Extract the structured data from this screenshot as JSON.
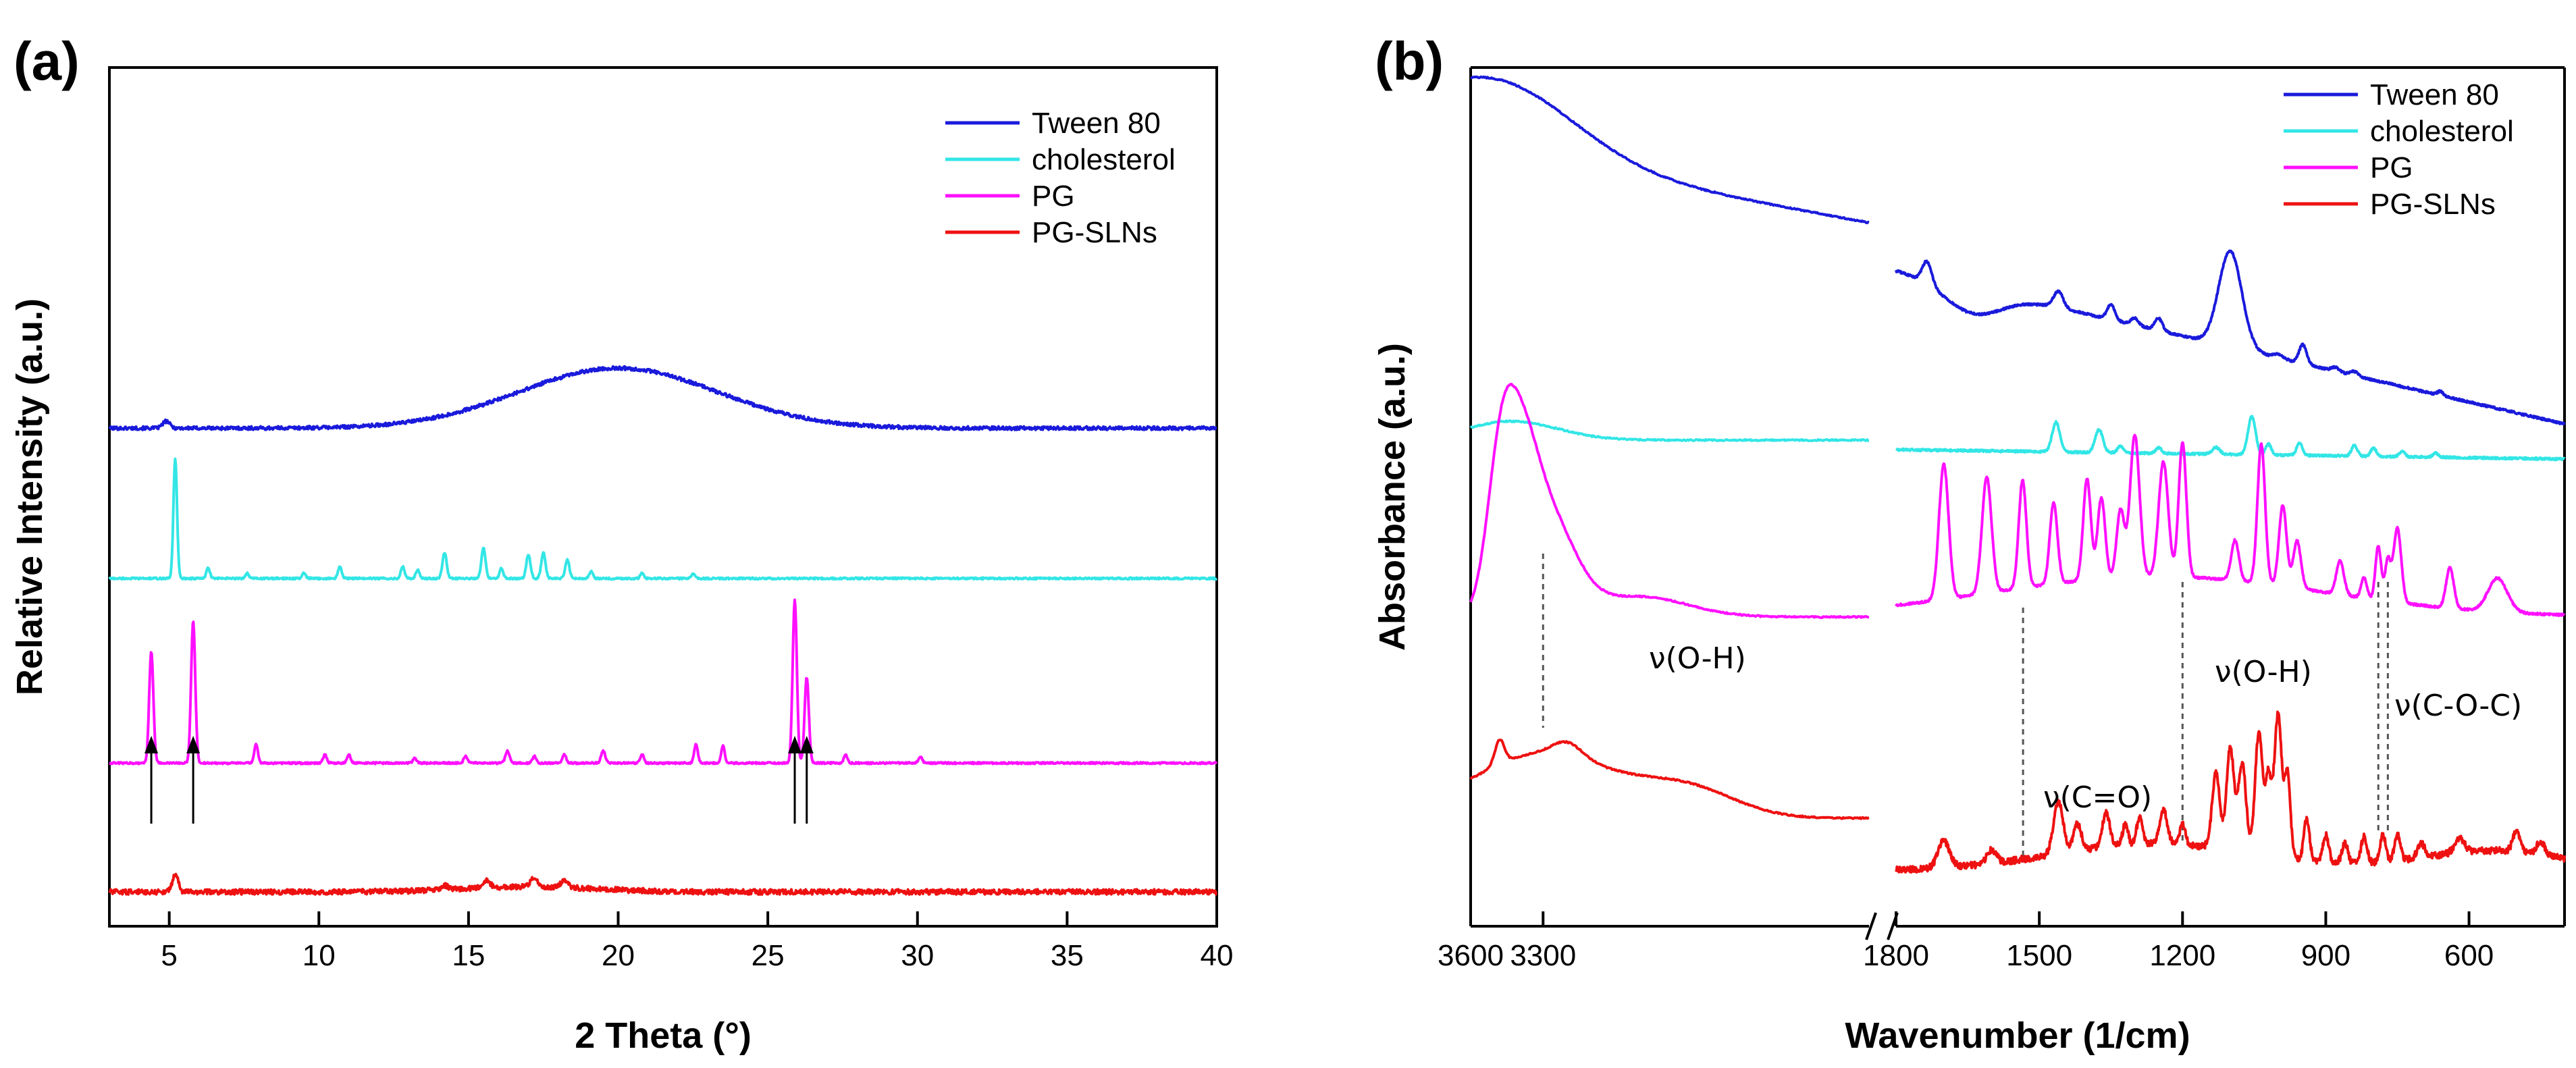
{
  "chart_data": [
    {
      "panel": "(a)",
      "type": "line",
      "xlabel": "2 Theta (°)",
      "ylabel": "Relative Intensity (a.u.)",
      "xlim": [
        3,
        40
      ],
      "xticks": [
        5,
        10,
        15,
        20,
        25,
        30,
        35,
        40
      ],
      "legend": "top-right",
      "series": [
        {
          "name": "Tween 80",
          "color": "#1a1adc",
          "offset": 0.58,
          "noise": 0.002,
          "broad": [
            [
              20.0,
              0.07,
              3.3
            ]
          ],
          "peaks": [
            [
              4.9,
              0.008,
              0.12
            ]
          ]
        },
        {
          "name": "cholesterol",
          "color": "#33e6e6",
          "offset": 0.405,
          "noise": 0.001,
          "broad": [],
          "peaks": [
            [
              5.2,
              0.14,
              0.06
            ],
            [
              6.3,
              0.012,
              0.06
            ],
            [
              7.6,
              0.006,
              0.06
            ],
            [
              9.5,
              0.006,
              0.06
            ],
            [
              10.7,
              0.014,
              0.06
            ],
            [
              12.8,
              0.014,
              0.06
            ],
            [
              13.3,
              0.01,
              0.06
            ],
            [
              14.2,
              0.03,
              0.07
            ],
            [
              15.5,
              0.035,
              0.07
            ],
            [
              16.1,
              0.012,
              0.06
            ],
            [
              17.0,
              0.028,
              0.07
            ],
            [
              17.5,
              0.03,
              0.07
            ],
            [
              18.3,
              0.022,
              0.07
            ],
            [
              19.1,
              0.008,
              0.06
            ],
            [
              20.8,
              0.006,
              0.06
            ],
            [
              22.5,
              0.005,
              0.06
            ]
          ]
        },
        {
          "name": "PG",
          "color": "#ff10ff",
          "offset": 0.19,
          "noise": 0.001,
          "broad": [],
          "peaks": [
            [
              4.4,
              0.13,
              0.07
            ],
            [
              5.8,
              0.165,
              0.07
            ],
            [
              7.9,
              0.022,
              0.06
            ],
            [
              10.2,
              0.01,
              0.06
            ],
            [
              11.0,
              0.01,
              0.06
            ],
            [
              13.2,
              0.006,
              0.06
            ],
            [
              14.9,
              0.008,
              0.06
            ],
            [
              16.3,
              0.014,
              0.07
            ],
            [
              17.2,
              0.008,
              0.06
            ],
            [
              18.2,
              0.01,
              0.06
            ],
            [
              19.5,
              0.014,
              0.07
            ],
            [
              20.8,
              0.01,
              0.06
            ],
            [
              22.6,
              0.022,
              0.06
            ],
            [
              23.5,
              0.02,
              0.06
            ],
            [
              25.9,
              0.19,
              0.07
            ],
            [
              26.3,
              0.1,
              0.07
            ],
            [
              27.6,
              0.01,
              0.06
            ],
            [
              30.1,
              0.008,
              0.06
            ]
          ]
        },
        {
          "name": "PG-SLNs",
          "color": "#ee1111",
          "offset": 0.04,
          "noise": 0.003,
          "broad": [
            [
              17.0,
              0.006,
              2.2
            ]
          ],
          "peaks": [
            [
              5.2,
              0.02,
              0.1
            ],
            [
              14.2,
              0.005,
              0.1
            ],
            [
              15.6,
              0.008,
              0.12
            ],
            [
              17.2,
              0.01,
              0.12
            ],
            [
              18.2,
              0.008,
              0.12
            ]
          ]
        }
      ],
      "arrows_x": [
        4.4,
        5.8,
        25.9,
        26.3
      ]
    },
    {
      "panel": "(b)",
      "type": "line",
      "xlabel": "Wavenumber (1/cm)",
      "ylabel": "Absorbance (a.u.)",
      "xlim": [
        3600,
        400
      ],
      "axis_break": [
        2100,
        1800
      ],
      "xticks": [
        3600,
        3300,
        1800,
        1500,
        1200,
        900,
        600
      ],
      "legend": "top-right",
      "series": [
        {
          "name": "Tween 80",
          "color": "#1a1adc"
        },
        {
          "name": "cholesterol",
          "color": "#33e6e6"
        },
        {
          "name": "PG",
          "color": "#ff10ff"
        },
        {
          "name": "PG-SLNs",
          "color": "#ee1111"
        }
      ],
      "annotations": [
        {
          "text": "ν(O-H)",
          "x": 3300
        },
        {
          "text": "ν(C=O)",
          "x": 1534
        },
        {
          "text": "ν(O-H)",
          "x": 1200
        },
        {
          "text": "ν(C-O-C)",
          "x": 770
        }
      ],
      "dashed_lines_x": [
        3300,
        1534,
        1200,
        790,
        770
      ]
    }
  ]
}
